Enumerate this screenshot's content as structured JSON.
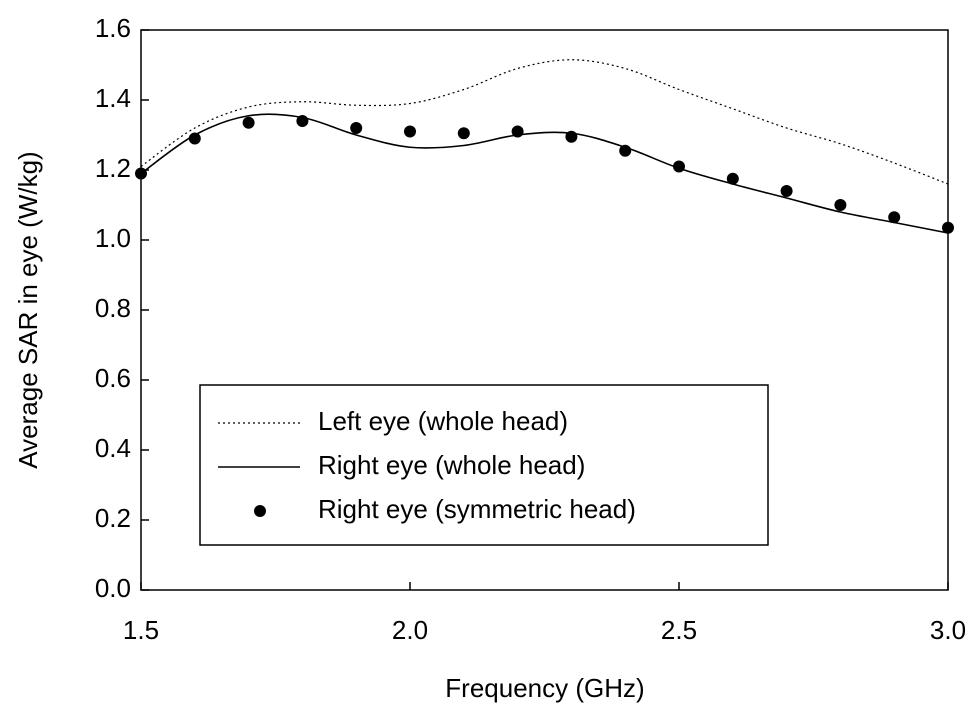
{
  "chart_data": {
    "type": "line",
    "xlabel": "Frequency (GHz)",
    "ylabel": "Average SAR in eye (W/kg)",
    "x": [
      1.5,
      1.6,
      1.7,
      1.8,
      1.9,
      2.0,
      2.1,
      2.2,
      2.3,
      2.4,
      2.5,
      2.6,
      2.7,
      2.8,
      2.9,
      3.0
    ],
    "series": [
      {
        "name": "Left eye (whole head)",
        "color": "#000000",
        "style": "dotted",
        "values": [
          1.21,
          1.32,
          1.38,
          1.395,
          1.385,
          1.39,
          1.43,
          1.49,
          1.515,
          1.49,
          1.43,
          1.375,
          1.32,
          1.275,
          1.22,
          1.16
        ]
      },
      {
        "name": "Right eye (whole head)",
        "color": "#000000",
        "style": "solid",
        "values": [
          1.19,
          1.3,
          1.355,
          1.35,
          1.3,
          1.265,
          1.27,
          1.3,
          1.305,
          1.265,
          1.205,
          1.16,
          1.12,
          1.08,
          1.05,
          1.02
        ]
      },
      {
        "name": "Right eye (symmetric head)",
        "color": "#000000",
        "style": "markers",
        "values": [
          1.19,
          1.29,
          1.335,
          1.34,
          1.32,
          1.31,
          1.305,
          1.31,
          1.295,
          1.255,
          1.21,
          1.175,
          1.14,
          1.1,
          1.065,
          1.035
        ]
      }
    ],
    "xlim": [
      1.5,
      3.0
    ],
    "xticks": [
      1.5,
      {
        "value": 2,
        "label": "2.0"
      },
      2.5,
      {
        "value": 3,
        "label": "3.0"
      }
    ],
    "ylim": [
      0,
      1.6
    ],
    "yticks": [
      {
        "value": 0,
        "label": "0.0"
      },
      0.2,
      0.4,
      0.6,
      0.8,
      {
        "value": 1,
        "label": "1.0"
      },
      1.2,
      1.4,
      1.6
    ],
    "grid": false,
    "legend": "lower left"
  }
}
